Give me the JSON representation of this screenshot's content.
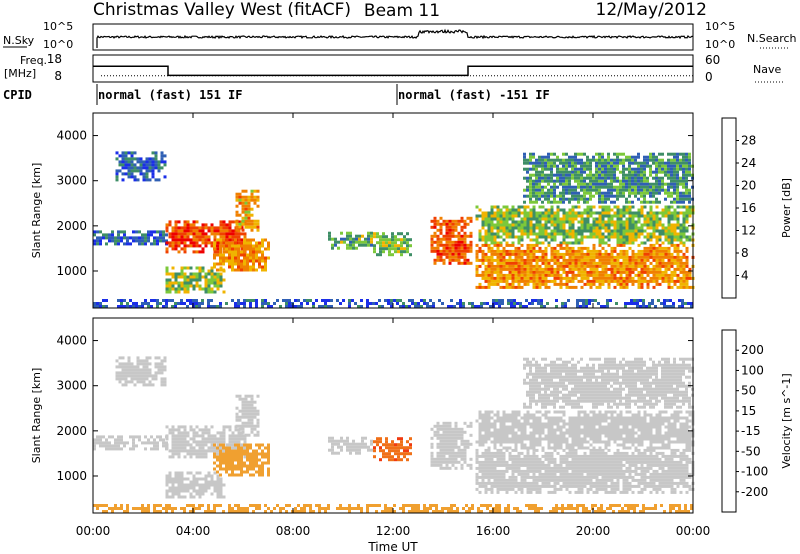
{
  "chart_data": {
    "type": "heatmap",
    "header": {
      "title": "Christmas Valley West (fitACF)",
      "beam": "Beam 11",
      "date": "12/May/2012"
    },
    "nsky": {
      "label": "N.Sky",
      "right_label": "N.Search",
      "tick_top": "10^5",
      "tick_bottom": "10^0",
      "right_tick_top": "10^5",
      "right_tick_bottom": "10^0"
    },
    "freq": {
      "label": "Freq.",
      "unit": "[MHz]",
      "ticks_left": [
        "18",
        "8"
      ],
      "ticks_right": [
        "60",
        "0"
      ],
      "right_label": "Nave",
      "freq_mhz": [
        {
          "from_hour": 0,
          "to_hour": 3.0,
          "value": 14
        },
        {
          "from_hour": 3.0,
          "to_hour": 15.0,
          "value": 10
        },
        {
          "from_hour": 15.0,
          "to_hour": 24,
          "value": 14
        }
      ],
      "nave_approx": 11
    },
    "cpid": {
      "label": "CPID",
      "segments": [
        {
          "from_hour": 0,
          "to_hour": 12.0,
          "text": "normal (fast) 151 IF"
        },
        {
          "from_hour": 12.0,
          "to_hour": 24,
          "text": "normal (fast) -151 IF"
        }
      ]
    },
    "x_axis": {
      "label": "Time UT",
      "range_hours": [
        0,
        24
      ],
      "ticks": [
        "00:00",
        "04:00",
        "08:00",
        "12:00",
        "16:00",
        "20:00",
        "00:00"
      ]
    },
    "y_axis": {
      "label": "Slant Range [km]",
      "range_km": [
        180,
        4500
      ],
      "ticks": [
        1000,
        2000,
        3000,
        4000
      ]
    },
    "power_panel": {
      "colorbar_label": "Power [dB]",
      "colorbar_ticks": [
        "28",
        "24",
        "20",
        "16",
        "12",
        "8",
        "4"
      ],
      "scale": [
        {
          "max_db": 4,
          "color": "#1b2ee8"
        },
        {
          "max_db": 8,
          "color": "#2f5fb4"
        },
        {
          "max_db": 12,
          "color": "#3e8e66"
        },
        {
          "max_db": 16,
          "color": "#7cc83a"
        },
        {
          "max_db": 20,
          "color": "#f0b400"
        },
        {
          "max_db": 24,
          "color": "#f08000"
        },
        {
          "max_db": 28,
          "color": "#f04000"
        },
        {
          "max_db": 99,
          "color": "#ee0000"
        }
      ],
      "echo_regions": [
        {
          "t0": 0.9,
          "t1": 2.9,
          "r0": 3000,
          "r1": 3650,
          "db": 6
        },
        {
          "t0": 0.0,
          "t1": 2.9,
          "r0": 1580,
          "r1": 1900,
          "db": 6
        },
        {
          "t0": 2.9,
          "t1": 6.1,
          "r0": 1400,
          "r1": 2120,
          "db": 26
        },
        {
          "t0": 5.7,
          "t1": 6.6,
          "r0": 1900,
          "r1": 2800,
          "db": 20
        },
        {
          "t0": 2.9,
          "t1": 5.3,
          "r0": 520,
          "r1": 1100,
          "db": 14
        },
        {
          "t0": 4.8,
          "t1": 7.0,
          "r0": 1050,
          "r1": 1720,
          "db": 21
        },
        {
          "t0": 9.4,
          "t1": 11.2,
          "r0": 1480,
          "r1": 1870,
          "db": 12
        },
        {
          "t0": 11.2,
          "t1": 12.7,
          "r0": 1380,
          "r1": 1860,
          "db": 14
        },
        {
          "t0": 13.5,
          "t1": 15.1,
          "r0": 1200,
          "r1": 2200,
          "db": 25
        },
        {
          "t0": 15.3,
          "t1": 24.0,
          "r0": 1650,
          "r1": 2450,
          "db": 14
        },
        {
          "t0": 15.3,
          "t1": 24.0,
          "r0": 650,
          "r1": 1600,
          "db": 21
        },
        {
          "t0": 17.2,
          "t1": 24.0,
          "r0": 2500,
          "r1": 3620,
          "db": 10
        },
        {
          "t0": 0.0,
          "t1": 24.0,
          "r0": 200,
          "r1": 380,
          "db": 5
        }
      ]
    },
    "velocity_panel": {
      "colorbar_label": "Velocity [m s^-1]",
      "colorbar_ticks": [
        "200",
        "100",
        "50",
        "15",
        "-15",
        "-50",
        "-100",
        "-200"
      ],
      "scale": [
        {
          "min_v": 200,
          "color": "#2233cc"
        },
        {
          "min_v": 100,
          "color": "#3a6fa8"
        },
        {
          "min_v": 50,
          "color": "#3d9a4a"
        },
        {
          "min_v": 15,
          "color": "#88d040"
        },
        {
          "min_v": -15,
          "color": "#c7c7c7"
        },
        {
          "min_v": -50,
          "color": "#f0a030"
        },
        {
          "min_v": -100,
          "color": "#f07018"
        },
        {
          "min_v": -200,
          "color": "#f03a10"
        },
        {
          "min_v": -999,
          "color": "#e80000"
        }
      ],
      "echo_regions": [
        {
          "t0": 0.9,
          "t1": 2.9,
          "r0": 3000,
          "r1": 3650,
          "v": 0
        },
        {
          "t0": 0.0,
          "t1": 2.9,
          "r0": 1580,
          "r1": 1900,
          "v": 0
        },
        {
          "t0": 2.9,
          "t1": 6.1,
          "r0": 1400,
          "r1": 2120,
          "v": 0
        },
        {
          "t0": 5.7,
          "t1": 6.6,
          "r0": 1900,
          "r1": 2800,
          "v": 0
        },
        {
          "t0": 2.9,
          "t1": 5.3,
          "r0": 520,
          "r1": 1100,
          "v": 0
        },
        {
          "t0": 4.8,
          "t1": 7.0,
          "r0": 1050,
          "r1": 1720,
          "v": -30
        },
        {
          "t0": 9.4,
          "t1": 11.2,
          "r0": 1480,
          "r1": 1870,
          "v": 0
        },
        {
          "t0": 11.2,
          "t1": 12.7,
          "r0": 1380,
          "r1": 1860,
          "v": -90
        },
        {
          "t0": 13.5,
          "t1": 15.1,
          "r0": 1200,
          "r1": 2200,
          "v": 0
        },
        {
          "t0": 15.3,
          "t1": 24.0,
          "r0": 1650,
          "r1": 2450,
          "v": 0
        },
        {
          "t0": 15.3,
          "t1": 24.0,
          "r0": 650,
          "r1": 1600,
          "v": 0
        },
        {
          "t0": 17.2,
          "t1": 24.0,
          "r0": 2500,
          "r1": 3620,
          "v": 0
        },
        {
          "t0": 0.0,
          "t1": 24.0,
          "r0": 200,
          "r1": 380,
          "v": -30
        }
      ]
    }
  }
}
